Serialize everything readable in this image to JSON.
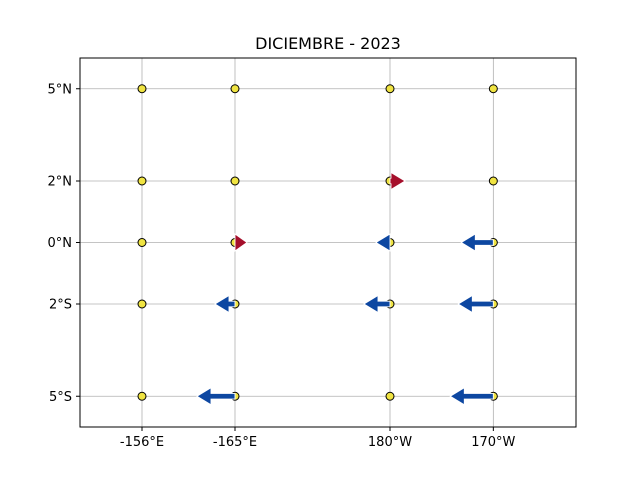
{
  "chart_data": {
    "type": "quiver-map",
    "title": "DICIEMBRE - 2023",
    "xlabel": "",
    "ylabel": "",
    "x_ticks": [
      {
        "label": "-156°E",
        "lon": 156
      },
      {
        "label": "-165°E",
        "lon": 165
      },
      {
        "label": "180°W",
        "lon": 180
      },
      {
        "label": "170°W",
        "lon": 190
      }
    ],
    "y_ticks": [
      {
        "label": "5°N",
        "lat": 5
      },
      {
        "label": "2°N",
        "lat": 2
      },
      {
        "label": "0°N",
        "lat": 0
      },
      {
        "label": "2°S",
        "lat": -2
      },
      {
        "label": "5°S",
        "lat": -5
      }
    ],
    "xlim": [
      150,
      198
    ],
    "ylim": [
      -6,
      6
    ],
    "grid": true,
    "stations": [
      {
        "lon": 156,
        "lat": 5
      },
      {
        "lon": 165,
        "lat": 5
      },
      {
        "lon": 180,
        "lat": 5
      },
      {
        "lon": 190,
        "lat": 5
      },
      {
        "lon": 156,
        "lat": 2
      },
      {
        "lon": 165,
        "lat": 2
      },
      {
        "lon": 180,
        "lat": 2
      },
      {
        "lon": 190,
        "lat": 2
      },
      {
        "lon": 156,
        "lat": 0
      },
      {
        "lon": 165,
        "lat": 0
      },
      {
        "lon": 180,
        "lat": 0
      },
      {
        "lon": 190,
        "lat": 0
      },
      {
        "lon": 156,
        "lat": -2
      },
      {
        "lon": 165,
        "lat": -2
      },
      {
        "lon": 180,
        "lat": -2
      },
      {
        "lon": 190,
        "lat": -2
      },
      {
        "lon": 156,
        "lat": -5
      },
      {
        "lon": 165,
        "lat": -5
      },
      {
        "lon": 180,
        "lat": -5
      },
      {
        "lon": 190,
        "lat": -5
      }
    ],
    "vectors": [
      {
        "lon": 180,
        "lat": 2,
        "u": 1.5,
        "direction": "east"
      },
      {
        "lon": 165,
        "lat": 0,
        "u": 1.2,
        "direction": "east"
      },
      {
        "lon": 180,
        "lat": 0,
        "u": -1.4,
        "direction": "west"
      },
      {
        "lon": 190,
        "lat": 0,
        "u": -3.2,
        "direction": "west"
      },
      {
        "lon": 165,
        "lat": -2,
        "u": -2.0,
        "direction": "west"
      },
      {
        "lon": 180,
        "lat": -2,
        "u": -2.6,
        "direction": "west"
      },
      {
        "lon": 190,
        "lat": -2,
        "u": -3.5,
        "direction": "west"
      },
      {
        "lon": 165,
        "lat": -5,
        "u": -3.8,
        "direction": "west"
      },
      {
        "lon": 190,
        "lat": -5,
        "u": -4.3,
        "direction": "west"
      }
    ],
    "colors": {
      "station_fill": "#f0e442",
      "eastward": "#a50f2b",
      "westward": "#0d47a1",
      "grid": "#b0b0b0"
    }
  }
}
